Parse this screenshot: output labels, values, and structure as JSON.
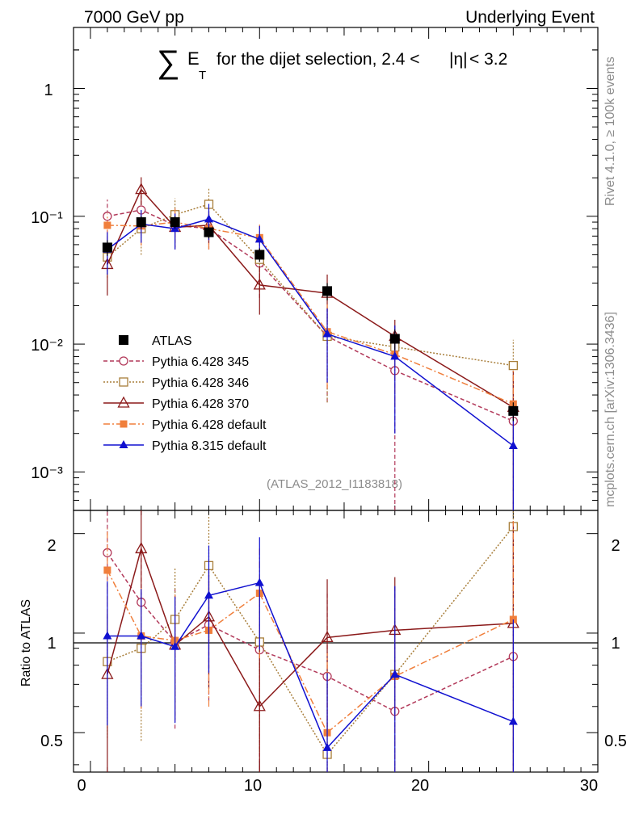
{
  "header": {
    "left": "7000 GeV pp",
    "right": "Underlying Event"
  },
  "side": {
    "rivet": "Rivet 4.1.0, ≥ 100k events",
    "mcplots": "mcplots.cern.ch [arXiv:1306.3436]"
  },
  "chart_data": {
    "type": "line",
    "title": {
      "sigma": "∑",
      "e": "E",
      "t": "T",
      "rest": "for the dijet selection, 2.4 <",
      "eta": "|η|",
      "end": " < 3.2"
    },
    "watermark": "(ATLAS_2012_I1183818)",
    "xlabel": "",
    "xlim": [
      -1,
      30
    ],
    "ylim_main": [
      0.0005,
      3.0
    ],
    "ylim_ratio": [
      0.38,
      2.35
    ],
    "yscale": "log",
    "xticks": [
      "0",
      "10",
      "20",
      "30"
    ],
    "yticks_main": [
      "10⁻³",
      "10⁻²",
      "10⁻¹",
      "1"
    ],
    "ratio_ylabel": "Ratio to ATLAS",
    "ratio_yticks": [
      "0.5",
      "1",
      "2"
    ],
    "x": [
      1,
      3,
      5,
      7,
      10,
      14,
      18,
      25
    ],
    "series": [
      {
        "name": "ATLAS",
        "color": "#000000",
        "marker": "square-filled",
        "dash": "none",
        "values": [
          0.057,
          0.09,
          0.09,
          0.075,
          0.05,
          0.026,
          0.011,
          0.003
        ],
        "errors": [
          0.008,
          0.01,
          0.01,
          0.008,
          0.006,
          0.004,
          0.002,
          0.0005
        ],
        "ratio": null
      },
      {
        "name": "Pythia 6.428 345",
        "color": "#b2395a",
        "marker": "circle-open",
        "dash": "5,3",
        "values": [
          0.1,
          0.112,
          0.085,
          0.08,
          0.043,
          0.0115,
          0.0062,
          0.0025
        ],
        "errors": [
          0.035,
          0.035,
          0.03,
          0.025,
          0.02,
          0.008,
          0.008,
          0.003
        ],
        "ratio": [
          1.75,
          1.24,
          0.94,
          1.06,
          0.89,
          0.74,
          0.58,
          0.85
        ]
      },
      {
        "name": "Pythia 6.428 346",
        "color": "#a87e3a",
        "marker": "square-open",
        "dash": "2,2",
        "values": [
          0.048,
          0.08,
          0.103,
          0.124,
          0.046,
          0.0115,
          0.0095,
          0.0068
        ],
        "errors": [
          0.015,
          0.03,
          0.035,
          0.04,
          0.02,
          0.008,
          0.004,
          0.004
        ],
        "ratio": [
          0.82,
          0.9,
          1.1,
          1.6,
          0.94,
          0.43,
          0.75,
          2.1
        ]
      },
      {
        "name": "Pythia 6.428 370",
        "color": "#8b1a1a",
        "marker": "triangle-open",
        "dash": "none",
        "values": [
          0.042,
          0.162,
          0.082,
          0.085,
          0.029,
          0.025,
          0.0115,
          0.0032
        ],
        "errors": [
          0.018,
          0.04,
          0.025,
          0.025,
          0.012,
          0.01,
          0.004,
          0.003
        ],
        "ratio": [
          0.75,
          1.8,
          0.92,
          1.12,
          0.6,
          0.97,
          1.02,
          1.07
        ]
      },
      {
        "name": "Pythia 6.428 default",
        "color": "#f07f3c",
        "marker": "square-filled-small",
        "dash": "8,3,2,3",
        "values": [
          0.085,
          0.084,
          0.09,
          0.08,
          0.068,
          0.0125,
          0.0083,
          0.0034
        ],
        "errors": [
          0.02,
          0.025,
          0.025,
          0.025,
          0.018,
          0.008,
          0.005,
          0.003
        ],
        "ratio": [
          1.55,
          0.98,
          0.95,
          1.02,
          1.32,
          0.5,
          0.74,
          1.1
        ]
      },
      {
        "name": "Pythia 8.315 default",
        "color": "#1010d0",
        "marker": "triangle-filled",
        "dash": "none",
        "values": [
          0.055,
          0.087,
          0.08,
          0.095,
          0.066,
          0.012,
          0.008,
          0.0016
        ],
        "errors": [
          0.02,
          0.025,
          0.025,
          0.03,
          0.018,
          0.007,
          0.006,
          0.0015
        ],
        "ratio": [
          0.98,
          0.98,
          0.91,
          1.3,
          1.42,
          0.45,
          0.75,
          0.54
        ]
      }
    ]
  }
}
